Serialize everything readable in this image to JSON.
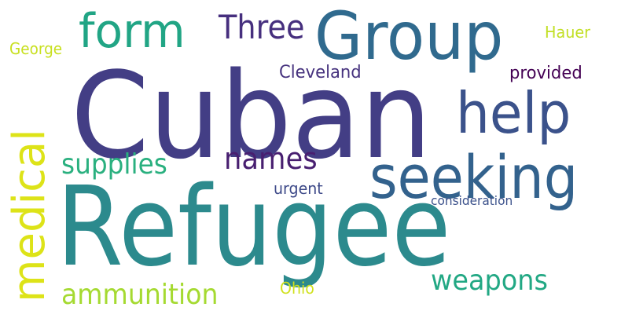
{
  "words": [
    {
      "text": "Cuban",
      "color": "#433e85"
    },
    {
      "text": "Refugee",
      "color": "#2c8a8d"
    },
    {
      "text": "Group",
      "color": "#306a8e"
    },
    {
      "text": "seeking",
      "color": "#33628d"
    },
    {
      "text": "help",
      "color": "#3b528b"
    },
    {
      "text": "form",
      "color": "#21a585"
    },
    {
      "text": "medical",
      "color": "#dde318"
    },
    {
      "text": "Three",
      "color": "#462f7e"
    },
    {
      "text": "names",
      "color": "#481f70"
    },
    {
      "text": "supplies",
      "color": "#2ab07f"
    },
    {
      "text": "weapons",
      "color": "#22a884"
    },
    {
      "text": "ammunition",
      "color": "#a5da31"
    },
    {
      "text": "Cleveland",
      "color": "#46327e"
    },
    {
      "text": "provided",
      "color": "#440154"
    },
    {
      "text": "Hauer",
      "color": "#c2df23"
    },
    {
      "text": "George",
      "color": "#c8e020"
    },
    {
      "text": "urgent",
      "color": "#3e4a89"
    },
    {
      "text": "consideration",
      "color": "#3b518b"
    },
    {
      "text": "Ohio",
      "color": "#d0e11c"
    }
  ]
}
